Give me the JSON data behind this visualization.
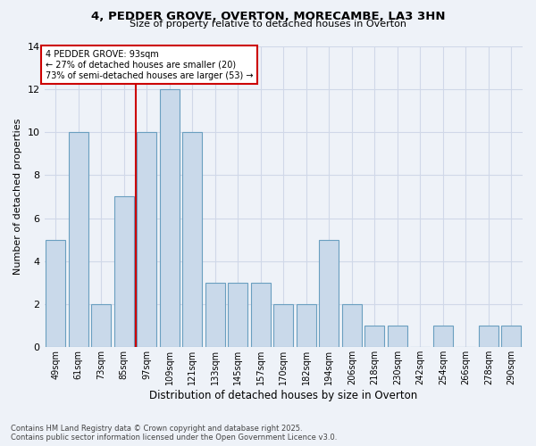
{
  "title_line1": "4, PEDDER GROVE, OVERTON, MORECAMBE, LA3 3HN",
  "title_line2": "Size of property relative to detached houses in Overton",
  "xlabel": "Distribution of detached houses by size in Overton",
  "ylabel": "Number of detached properties",
  "categories": [
    "49sqm",
    "61sqm",
    "73sqm",
    "85sqm",
    "97sqm",
    "109sqm",
    "121sqm",
    "133sqm",
    "145sqm",
    "157sqm",
    "170sqm",
    "182sqm",
    "194sqm",
    "206sqm",
    "218sqm",
    "230sqm",
    "242sqm",
    "254sqm",
    "266sqm",
    "278sqm",
    "290sqm"
  ],
  "values": [
    5,
    10,
    2,
    7,
    10,
    12,
    10,
    3,
    3,
    3,
    2,
    2,
    5,
    2,
    1,
    1,
    0,
    1,
    0,
    1,
    1
  ],
  "bar_color": "#c9d9ea",
  "bar_edge_color": "#6a9fc0",
  "grid_color": "#d0d8e8",
  "background_color": "#eef2f8",
  "ref_line_x": 3.5,
  "annotation_text": "4 PEDDER GROVE: 93sqm\n← 27% of detached houses are smaller (20)\n73% of semi-detached houses are larger (53) →",
  "annotation_box_color": "#ffffff",
  "annotation_box_edge": "#cc0000",
  "footer_line1": "Contains HM Land Registry data © Crown copyright and database right 2025.",
  "footer_line2": "Contains public sector information licensed under the Open Government Licence v3.0.",
  "ylim": [
    0,
    14
  ],
  "yticks": [
    0,
    2,
    4,
    6,
    8,
    10,
    12,
    14
  ]
}
